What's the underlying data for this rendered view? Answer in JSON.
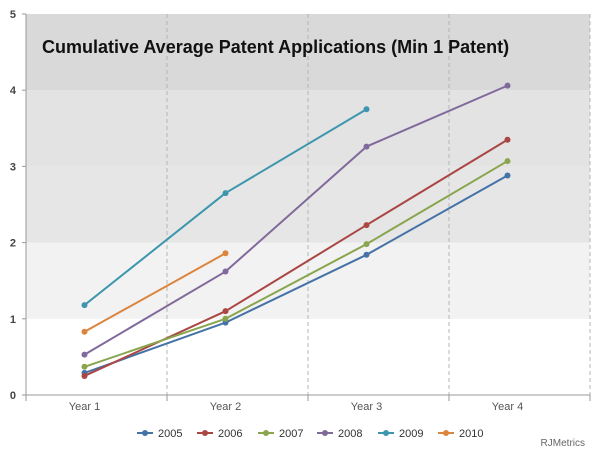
{
  "chart_data": {
    "type": "line",
    "title": "Cumulative Average Patent Applications (Min 1 Patent)",
    "xlabel": "",
    "ylabel": "",
    "categories": [
      "Year 1",
      "Year 2",
      "Year 3",
      "Year 4"
    ],
    "ylim": [
      0,
      5
    ],
    "yticks": [
      "0",
      "1",
      "2",
      "3",
      "4",
      "5"
    ],
    "series": [
      {
        "name": "2005",
        "color": "#4572a7",
        "values": [
          0.29,
          0.95,
          1.84,
          2.88
        ]
      },
      {
        "name": "2006",
        "color": "#aa4643",
        "values": [
          0.25,
          1.1,
          2.23,
          3.35
        ]
      },
      {
        "name": "2007",
        "color": "#89a54e",
        "values": [
          0.37,
          1.0,
          1.98,
          3.07
        ]
      },
      {
        "name": "2008",
        "color": "#80699b",
        "values": [
          0.53,
          1.62,
          3.26,
          4.06
        ]
      },
      {
        "name": "2009",
        "color": "#3d96ae",
        "values": [
          1.18,
          2.65,
          3.75,
          null
        ]
      },
      {
        "name": "2010",
        "color": "#db843d",
        "values": [
          0.83,
          1.86,
          null,
          null
        ]
      }
    ],
    "bands": [
      {
        "from": 0,
        "to": 1,
        "color": "#ffffff"
      },
      {
        "from": 1,
        "to": 2,
        "color": "#f2f2f2"
      },
      {
        "from": 2,
        "to": 3,
        "color": "#e6e6e6"
      },
      {
        "from": 3,
        "to": 4,
        "color": "#e3e3e3"
      },
      {
        "from": 4,
        "to": 5,
        "color": "#d9d9d9"
      }
    ],
    "legend": "bottom-center",
    "grid": true
  },
  "credit": "RJMetrics"
}
